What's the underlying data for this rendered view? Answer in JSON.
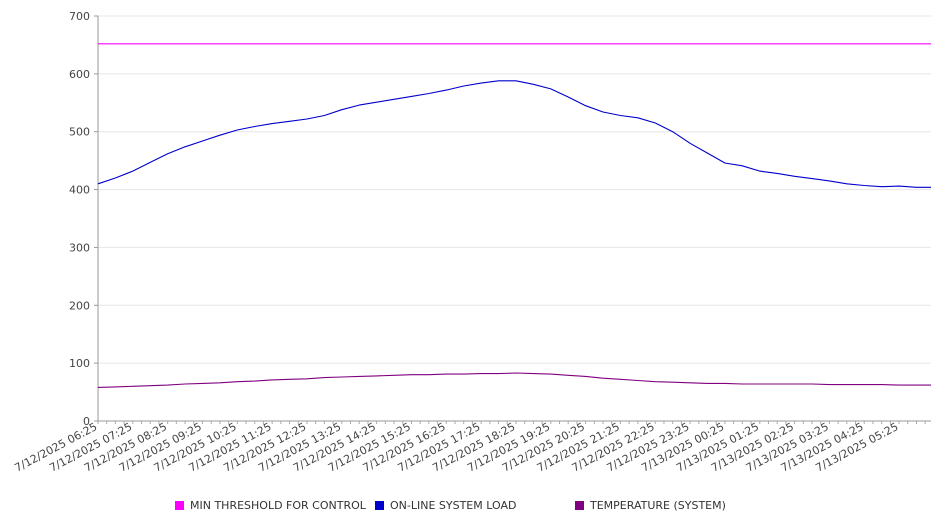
{
  "chart_data": {
    "type": "line",
    "title": "",
    "xlabel": "",
    "ylabel": "",
    "ylim": [
      0,
      700
    ],
    "y_ticks": [
      0,
      100,
      200,
      300,
      400,
      500,
      600,
      700
    ],
    "grid": "horizontal",
    "legend_position": "bottom",
    "x_tick_labels": [
      "7/12/2025 06:25",
      "7/12/2025 07:25",
      "7/12/2025 08:25",
      "7/12/2025 09:25",
      "7/12/2025 10:25",
      "7/12/2025 11:25",
      "7/12/2025 12:25",
      "7/12/2025 13:25",
      "7/12/2025 14:25",
      "7/12/2025 15:25",
      "7/12/2025 16:25",
      "7/12/2025 17:25",
      "7/12/2025 18:25",
      "7/12/2025 19:25",
      "7/12/2025 20:25",
      "7/12/2025 21:25",
      "7/12/2025 22:25",
      "7/12/2025 23:25",
      "7/13/2025 00:25",
      "7/13/2025 01:25",
      "7/13/2025 02:25",
      "7/13/2025 03:25",
      "7/13/2025 04:25",
      "7/13/2025 05:25"
    ],
    "x": [
      "7/12/2025 06:25",
      "7/12/2025 06:55",
      "7/12/2025 07:25",
      "7/12/2025 07:55",
      "7/12/2025 08:25",
      "7/12/2025 08:55",
      "7/12/2025 09:25",
      "7/12/2025 09:55",
      "7/12/2025 10:25",
      "7/12/2025 10:55",
      "7/12/2025 11:25",
      "7/12/2025 11:55",
      "7/12/2025 12:25",
      "7/12/2025 12:55",
      "7/12/2025 13:25",
      "7/12/2025 13:55",
      "7/12/2025 14:25",
      "7/12/2025 14:55",
      "7/12/2025 15:25",
      "7/12/2025 15:55",
      "7/12/2025 16:25",
      "7/12/2025 16:55",
      "7/12/2025 17:25",
      "7/12/2025 17:55",
      "7/12/2025 18:25",
      "7/12/2025 18:55",
      "7/12/2025 19:25",
      "7/12/2025 19:55",
      "7/12/2025 20:25",
      "7/12/2025 20:55",
      "7/12/2025 21:25",
      "7/12/2025 21:55",
      "7/12/2025 22:25",
      "7/12/2025 22:55",
      "7/12/2025 23:25",
      "7/12/2025 23:55",
      "7/13/2025 00:25",
      "7/13/2025 00:55",
      "7/13/2025 01:25",
      "7/13/2025 01:55",
      "7/13/2025 02:25",
      "7/13/2025 02:55",
      "7/13/2025 03:25",
      "7/13/2025 03:55",
      "7/13/2025 04:25",
      "7/13/2025 04:55",
      "7/13/2025 05:25",
      "7/13/2025 05:55",
      "7/13/2025 06:20"
    ],
    "series": [
      {
        "name": "MIN THRESHOLD FOR CONTROL",
        "color": "#ff00ff",
        "values": [
          652,
          652,
          652,
          652,
          652,
          652,
          652,
          652,
          652,
          652,
          652,
          652,
          652,
          652,
          652,
          652,
          652,
          652,
          652,
          652,
          652,
          652,
          652,
          652,
          652,
          652,
          652,
          652,
          652,
          652,
          652,
          652,
          652,
          652,
          652,
          652,
          652,
          652,
          652,
          652,
          652,
          652,
          652,
          652,
          652,
          652,
          652,
          652,
          652
        ]
      },
      {
        "name": "ON-LINE SYSTEM LOAD",
        "color": "#0000cc",
        "values": [
          410,
          420,
          432,
          447,
          462,
          474,
          484,
          494,
          503,
          509,
          514,
          518,
          522,
          528,
          538,
          546,
          551,
          556,
          561,
          566,
          572,
          579,
          584,
          588,
          588,
          582,
          574,
          560,
          545,
          534,
          528,
          524,
          515,
          500,
          480,
          463,
          446,
          441,
          432,
          428,
          423,
          419,
          415,
          410,
          407,
          405,
          406,
          404,
          404
        ]
      },
      {
        "name": "TEMPERATURE (SYSTEM)",
        "color": "#800080",
        "values": [
          58,
          59,
          60,
          61,
          62,
          64,
          65,
          66,
          68,
          69,
          71,
          72,
          73,
          75,
          76,
          77,
          78,
          79,
          80,
          80,
          81,
          81,
          82,
          82,
          83,
          82,
          81,
          79,
          77,
          74,
          72,
          70,
          68,
          67,
          66,
          65,
          65,
          64,
          64,
          64,
          64,
          64,
          63,
          63,
          63,
          63,
          62,
          62,
          62
        ]
      }
    ]
  }
}
